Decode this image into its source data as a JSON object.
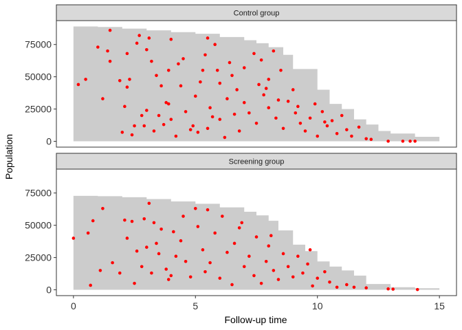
{
  "chart_data": {
    "type": "area",
    "ylabel": "Population",
    "xlabel": "Follow-up time",
    "xlim": [
      -0.7,
      15.7
    ],
    "ylim": [
      -4500,
      93500
    ],
    "x_ticks": [
      0,
      5,
      10,
      15
    ],
    "x_tick_labels": [
      "0",
      "5",
      "10",
      "15"
    ],
    "y_ticks": [
      0,
      25000,
      50000,
      75000
    ],
    "y_tick_labels": [
      "0",
      "25000",
      "50000",
      "75000"
    ],
    "grid": false,
    "colors": {
      "area": "#cccccc",
      "points": "#ff0000",
      "strip": "#d9d9d9",
      "frame": "#333333"
    },
    "panels": [
      {
        "strip_label": "Control group",
        "area": [
          [
            0,
            89000
          ],
          [
            1,
            88600
          ],
          [
            2,
            87300
          ],
          [
            3,
            86000
          ],
          [
            4,
            84600
          ],
          [
            5,
            83300
          ],
          [
            6,
            80800
          ],
          [
            7,
            78300
          ],
          [
            7.5,
            76000
          ],
          [
            8,
            72900
          ],
          [
            8.6,
            67000
          ],
          [
            9,
            56000
          ],
          [
            10,
            40000
          ],
          [
            10.5,
            29000
          ],
          [
            11,
            25000
          ],
          [
            11.5,
            17000
          ],
          [
            12,
            13000
          ],
          [
            12.5,
            8000
          ],
          [
            13,
            6000
          ],
          [
            14,
            3500
          ],
          [
            15,
            2000
          ]
        ],
        "points": [
          [
            0.2,
            44000
          ],
          [
            0.5,
            48000
          ],
          [
            1,
            73000
          ],
          [
            1.2,
            33000
          ],
          [
            1.4,
            70000
          ],
          [
            1.5,
            62000
          ],
          [
            1.5,
            86000
          ],
          [
            1.9,
            47000
          ],
          [
            2,
            7000
          ],
          [
            2.1,
            27000
          ],
          [
            2.2,
            42000
          ],
          [
            2.2,
            68000
          ],
          [
            2.3,
            48000
          ],
          [
            2.4,
            5000
          ],
          [
            2.5,
            12000
          ],
          [
            2.6,
            76000
          ],
          [
            2.7,
            82000
          ],
          [
            2.8,
            20000
          ],
          [
            2.9,
            12000
          ],
          [
            3,
            71000
          ],
          [
            3,
            24000
          ],
          [
            3.1,
            80000
          ],
          [
            3.2,
            62000
          ],
          [
            3.3,
            8000
          ],
          [
            3.4,
            51000
          ],
          [
            3.5,
            20000
          ],
          [
            3.6,
            43000
          ],
          [
            3.7,
            13000
          ],
          [
            3.8,
            30000
          ],
          [
            3.9,
            55000
          ],
          [
            4,
            79000
          ],
          [
            4,
            17000
          ],
          [
            4.2,
            4000
          ],
          [
            4.3,
            60000
          ],
          [
            4.5,
            64000
          ],
          [
            4.6,
            23000
          ],
          [
            4.8,
            9000
          ],
          [
            4.9,
            12000
          ],
          [
            5,
            35000
          ],
          [
            5.1,
            7000
          ],
          [
            5.2,
            46000
          ],
          [
            5.3,
            55000
          ],
          [
            5.4,
            67000
          ],
          [
            5.5,
            80000
          ],
          [
            5.6,
            26000
          ],
          [
            5.7,
            19000
          ],
          [
            5.8,
            75000
          ],
          [
            6,
            45000
          ],
          [
            6,
            17000
          ],
          [
            6.2,
            3000
          ],
          [
            6.3,
            33000
          ],
          [
            6.5,
            51000
          ],
          [
            6.6,
            21000
          ],
          [
            6.7,
            40000
          ],
          [
            6.8,
            8000
          ],
          [
            7,
            57000
          ],
          [
            7,
            30000
          ],
          [
            7.2,
            22000
          ],
          [
            7.4,
            68000
          ],
          [
            7.5,
            14000
          ],
          [
            7.6,
            44000
          ],
          [
            7.7,
            63000
          ],
          [
            7.8,
            36000
          ],
          [
            8,
            26000
          ],
          [
            8,
            48000
          ],
          [
            8.2,
            70000
          ],
          [
            8.3,
            18000
          ],
          [
            8.5,
            55000
          ],
          [
            8.6,
            10000
          ],
          [
            8.8,
            31000
          ],
          [
            9,
            40000
          ],
          [
            9.1,
            22000
          ],
          [
            9.3,
            14000
          ],
          [
            9.5,
            8000
          ],
          [
            9.7,
            18000
          ],
          [
            9.9,
            29000
          ],
          [
            10,
            4000
          ],
          [
            10.2,
            23000
          ],
          [
            10.4,
            12000
          ],
          [
            10.6,
            16000
          ],
          [
            10.8,
            6000
          ],
          [
            11,
            20000
          ],
          [
            11.2,
            9000
          ],
          [
            11.4,
            4000
          ],
          [
            11.7,
            11000
          ],
          [
            12,
            2000
          ],
          [
            12.2,
            1500
          ],
          [
            12.9,
            100
          ],
          [
            13.5,
            100
          ],
          [
            13.8,
            100
          ],
          [
            14,
            100
          ],
          [
            6.4,
            61000
          ],
          [
            5.9,
            55000
          ],
          [
            4.4,
            43000
          ],
          [
            3.9,
            29000
          ],
          [
            7.9,
            41000
          ],
          [
            8.4,
            32000
          ],
          [
            9.2,
            27000
          ],
          [
            10.3,
            15000
          ],
          [
            5.5,
            10000
          ]
        ]
      },
      {
        "strip_label": "Screening group",
        "area": [
          [
            0,
            72800
          ],
          [
            1,
            72500
          ],
          [
            2,
            71700
          ],
          [
            3,
            70300
          ],
          [
            4,
            68500
          ],
          [
            5,
            66700
          ],
          [
            6,
            63900
          ],
          [
            7,
            60500
          ],
          [
            7.5,
            57700
          ],
          [
            8,
            53500
          ],
          [
            8.4,
            46000
          ],
          [
            9,
            35000
          ],
          [
            9.5,
            30000
          ],
          [
            10,
            22000
          ],
          [
            10.5,
            18000
          ],
          [
            11,
            15000
          ],
          [
            11.5,
            11000
          ],
          [
            12,
            4500
          ],
          [
            13,
            2000
          ],
          [
            14,
            1200
          ],
          [
            15,
            800
          ]
        ],
        "points": [
          [
            0,
            40000
          ],
          [
            0.6,
            44000
          ],
          [
            0.8,
            53500
          ],
          [
            0.7,
            3500
          ],
          [
            1.1,
            15000
          ],
          [
            1.2,
            63000
          ],
          [
            1.6,
            21000
          ],
          [
            1.9,
            13000
          ],
          [
            2.1,
            54000
          ],
          [
            2.4,
            53000
          ],
          [
            2.5,
            5000
          ],
          [
            2.6,
            30000
          ],
          [
            2.8,
            18000
          ],
          [
            2.9,
            55000
          ],
          [
            3.1,
            67000
          ],
          [
            3.2,
            13000
          ],
          [
            3.3,
            52000
          ],
          [
            3.4,
            36000
          ],
          [
            3.5,
            28000
          ],
          [
            3.6,
            47000
          ],
          [
            3.8,
            16000
          ],
          [
            3.9,
            8000
          ],
          [
            4,
            11000
          ],
          [
            4.2,
            26000
          ],
          [
            4.4,
            38000
          ],
          [
            4.5,
            57000
          ],
          [
            4.6,
            22000
          ],
          [
            4.8,
            10000
          ],
          [
            5,
            63000
          ],
          [
            5.1,
            49000
          ],
          [
            5.3,
            31000
          ],
          [
            5.4,
            14000
          ],
          [
            5.6,
            21000
          ],
          [
            5.8,
            44000
          ],
          [
            6,
            9000
          ],
          [
            6.1,
            57000
          ],
          [
            6.3,
            29000
          ],
          [
            6.5,
            4000
          ],
          [
            6.6,
            36000
          ],
          [
            6.8,
            48000
          ],
          [
            7,
            18000
          ],
          [
            7.2,
            26000
          ],
          [
            7.4,
            11000
          ],
          [
            7.5,
            41000
          ],
          [
            7.7,
            5000
          ],
          [
            7.9,
            22000
          ],
          [
            8,
            34000
          ],
          [
            8.2,
            15000
          ],
          [
            8.4,
            8000
          ],
          [
            8.6,
            28000
          ],
          [
            8.8,
            18000
          ],
          [
            9,
            10000
          ],
          [
            9.2,
            26000
          ],
          [
            9.4,
            13000
          ],
          [
            9.6,
            20000
          ],
          [
            9.8,
            3000
          ],
          [
            10,
            9000
          ],
          [
            10.3,
            14000
          ],
          [
            10.5,
            6000
          ],
          [
            10.8,
            2000
          ],
          [
            11.2,
            4000
          ],
          [
            11.5,
            2000
          ],
          [
            12,
            1500
          ],
          [
            12.9,
            700
          ],
          [
            13.1,
            500
          ],
          [
            14.1,
            200
          ],
          [
            5.5,
            62000
          ],
          [
            4.1,
            45000
          ],
          [
            6.9,
            52000
          ],
          [
            8.1,
            42000
          ],
          [
            3.0,
            33000
          ],
          [
            2.2,
            40000
          ],
          [
            9.7,
            31000
          ]
        ]
      }
    ]
  }
}
